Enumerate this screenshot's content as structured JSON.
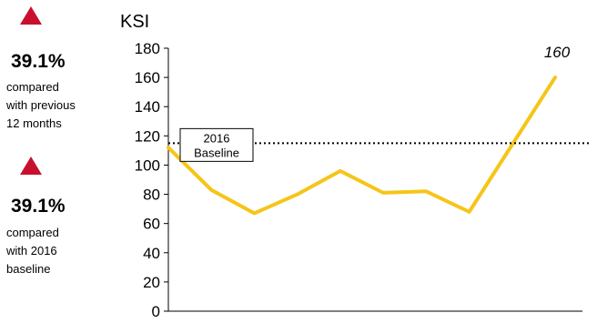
{
  "kpis": [
    {
      "direction": "up",
      "value": "39.1%",
      "caption_lines": [
        "compared",
        "with previous",
        "12 months"
      ]
    },
    {
      "direction": "up",
      "value": "39.1%",
      "caption_lines": [
        "compared",
        "with 2016",
        "baseline"
      ]
    }
  ],
  "colors": {
    "up_arrow": "#c8102e",
    "series_line": "#f5c518",
    "baseline": "#000000"
  },
  "chart_data": {
    "type": "line",
    "title": "KSI",
    "ylim": [
      0,
      180
    ],
    "yticks": [
      0,
      20,
      40,
      60,
      80,
      100,
      120,
      140,
      160,
      180
    ],
    "series": [
      {
        "values": [
          112,
          83,
          67,
          80,
          96,
          81,
          82,
          68,
          114,
          160
        ]
      }
    ],
    "point_label": {
      "index": 9,
      "text": "160"
    },
    "baseline": {
      "value": 115,
      "label_lines": [
        "2016",
        "Baseline"
      ]
    },
    "grid": false
  }
}
